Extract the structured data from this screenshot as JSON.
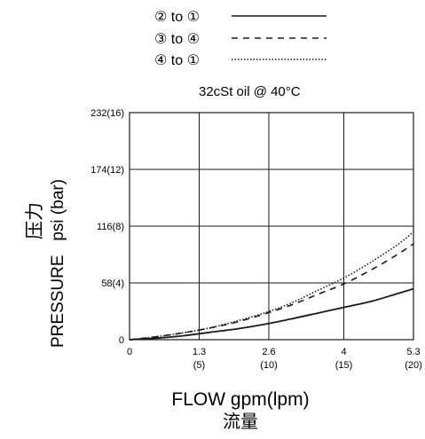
{
  "chart_data": {
    "type": "line",
    "condition": "32cSt oil @ 40°C",
    "xlabel": "FLOW gpm(lpm)",
    "xlabel_cn": "流量",
    "ylabel": "PRESSURE   psi (bar)",
    "ylabel_cn": "压力",
    "xlim": [
      0,
      5.3
    ],
    "ylim": [
      0,
      232
    ],
    "grid": true,
    "legend_position": "top-center",
    "x_ticks": [
      {
        "value": 0,
        "label": "0",
        "sub": ""
      },
      {
        "value": 1.3,
        "label": "1.3",
        "sub": "(5)"
      },
      {
        "value": 2.6,
        "label": "2.6",
        "sub": "(10)"
      },
      {
        "value": 4,
        "label": "4",
        "sub": "(15)"
      },
      {
        "value": 5.3,
        "label": "5.3",
        "sub": "(20)"
      }
    ],
    "y_ticks": [
      {
        "value": 0,
        "label": "0"
      },
      {
        "value": 58,
        "label": "58(4)"
      },
      {
        "value": 116,
        "label": "116(8)"
      },
      {
        "value": 174,
        "label": "174(12)"
      },
      {
        "value": 232,
        "label": "232(16)"
      }
    ],
    "series": [
      {
        "name": "② to ①",
        "style": "solid",
        "x": [
          0,
          0.5,
          1.0,
          1.5,
          2.0,
          2.5,
          3.0,
          3.5,
          4.0,
          4.5,
          5.0,
          5.3
        ],
        "y": [
          0,
          1.5,
          4,
          7.5,
          11,
          15.5,
          21,
          27,
          33,
          39,
          47,
          52
        ]
      },
      {
        "name": "③ to ④",
        "style": "dashed",
        "x": [
          0,
          0.5,
          1.0,
          1.5,
          2.0,
          2.5,
          3.0,
          3.5,
          4.0,
          4.5,
          5.0,
          5.3
        ],
        "y": [
          0,
          3,
          7,
          12,
          18,
          26,
          35,
          46,
          57,
          71,
          87,
          98
        ]
      },
      {
        "name": "④ to ①",
        "style": "dotted",
        "x": [
          0,
          0.5,
          1.0,
          1.5,
          2.0,
          2.5,
          3.0,
          3.5,
          4.0,
          4.5,
          5.0,
          5.3
        ],
        "y": [
          0,
          3,
          7,
          12,
          19,
          27,
          37,
          50,
          63,
          79,
          97,
          110
        ]
      }
    ]
  }
}
